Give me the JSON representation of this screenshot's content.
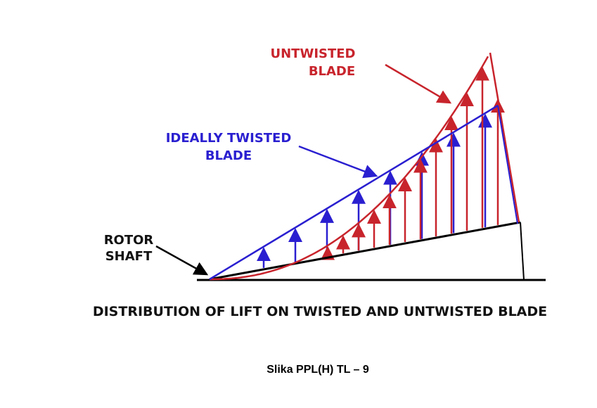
{
  "labels": {
    "untwisted": [
      "UNTWISTED",
      "BLADE"
    ],
    "ideally_twisted": [
      "IDEALLY TWISTED",
      "BLADE"
    ],
    "rotor_shaft": [
      "ROTOR",
      "SHAFT"
    ]
  },
  "caption": "DISTRIBUTION OF LIFT ON TWISTED AND UNTWISTED BLADE",
  "figure_id": "Slika PPL(H) TL – 9"
}
